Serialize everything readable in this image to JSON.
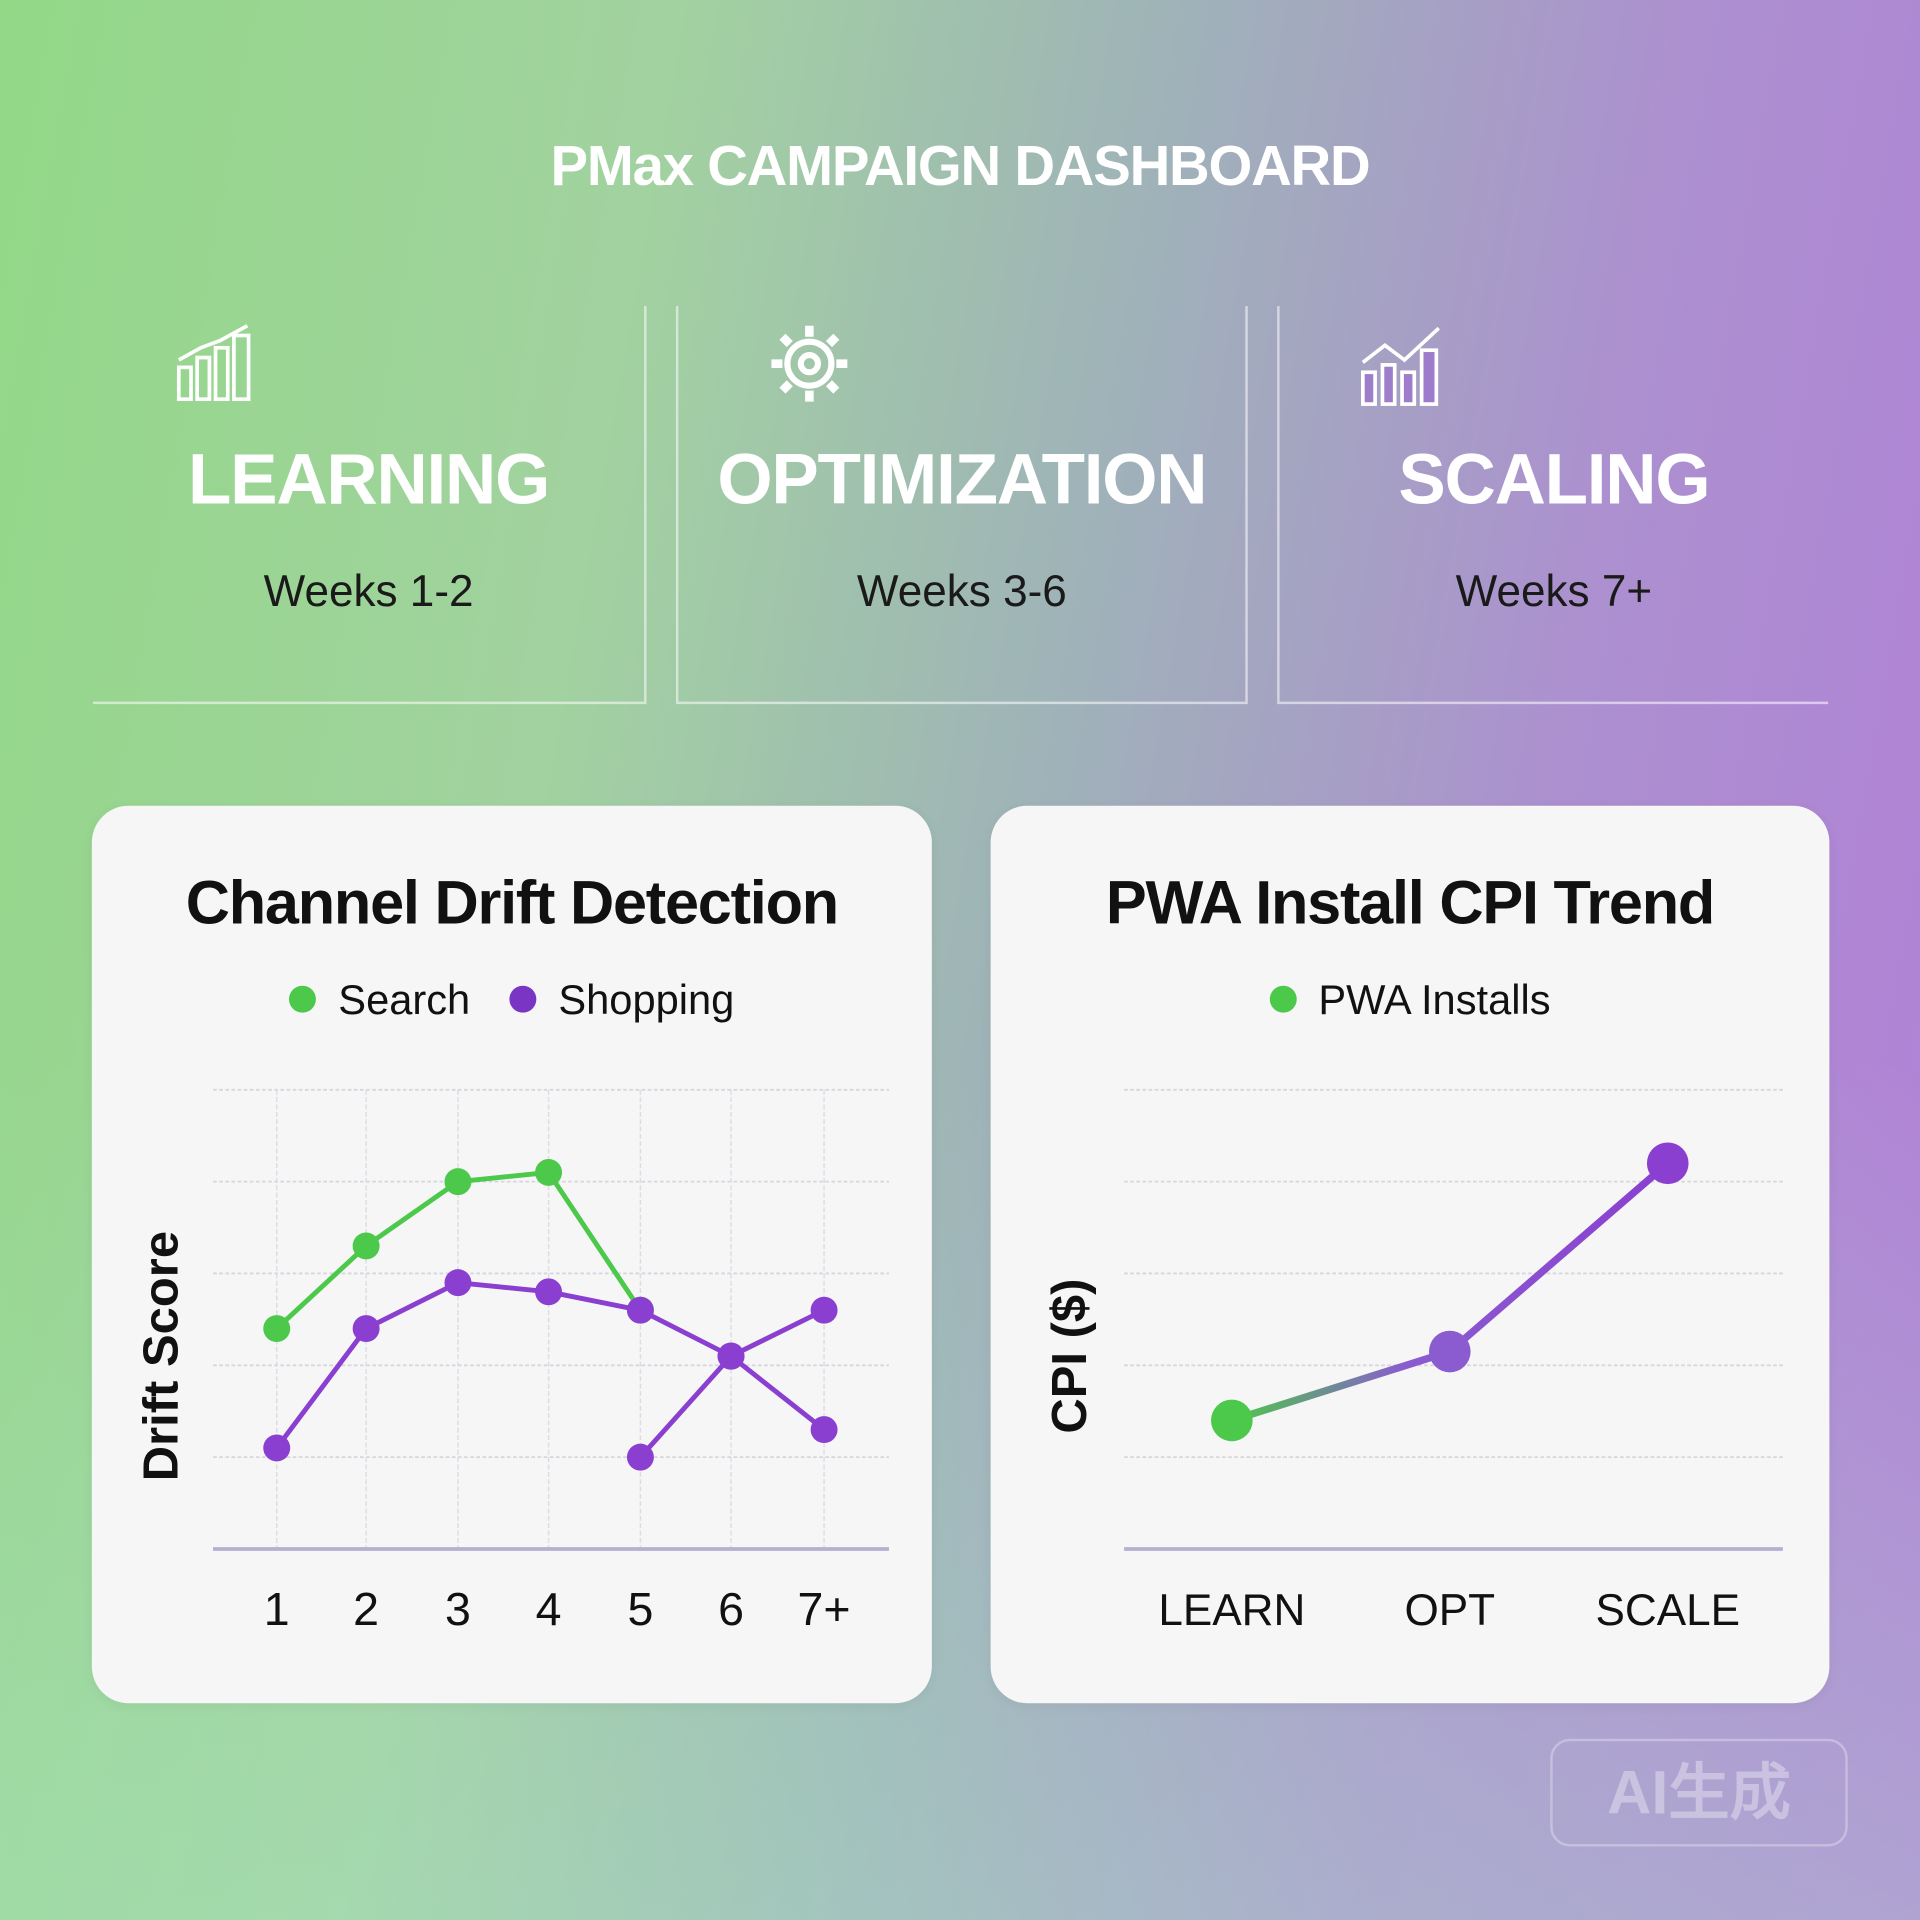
{
  "header": {
    "title": "PMax CAMPAIGN DASHBOARD"
  },
  "phases": [
    {
      "icon": "bar-chart-icon",
      "name": "LEARNING",
      "weeks": "Weeks 1-2"
    },
    {
      "icon": "gear-icon",
      "name": "OPTIMIZATION",
      "weeks": "Weeks 3-6"
    },
    {
      "icon": "growth-chart-icon",
      "name": "SCALING",
      "weeks": "Weeks 7+"
    }
  ],
  "colors": {
    "green": "#4cc84a",
    "purple": "#8a3fd0",
    "axis": "#b4b0cf",
    "grid": "#d8d8e0"
  },
  "chart_data": [
    {
      "type": "line",
      "title": "Channel Drift Detection",
      "xlabel": "",
      "ylabel": "Drift Score",
      "categories": [
        "1",
        "2",
        "3",
        "4",
        "5",
        "6",
        "7+"
      ],
      "ylim": [
        0,
        5
      ],
      "grid": true,
      "legend": "top",
      "series": [
        {
          "name": "Search",
          "color": "#4cc84a",
          "values": [
            2.4,
            3.3,
            4.0,
            4.1,
            2.6,
            null,
            null
          ]
        },
        {
          "name": "Shopping",
          "color": "#8a3fd0",
          "values": [
            1.1,
            2.4,
            2.9,
            2.8,
            2.6,
            2.1,
            1.3
          ]
        },
        {
          "color": "#8a3fd0",
          "values": [
            null,
            null,
            null,
            null,
            1.0,
            2.1,
            2.6
          ]
        }
      ]
    },
    {
      "type": "line",
      "title": "PWA Install CPI Trend",
      "xlabel": "",
      "ylabel": "CPI ($)",
      "categories": [
        "LEARN",
        "OPT",
        "SCALE"
      ],
      "ylim": [
        0,
        5
      ],
      "grid": true,
      "legend": "top",
      "series": [
        {
          "name": "PWA Installs",
          "color": "#4cc84a",
          "values": [
            1.4,
            2.15,
            4.2
          ]
        }
      ]
    }
  ],
  "watermark": "AI生成"
}
